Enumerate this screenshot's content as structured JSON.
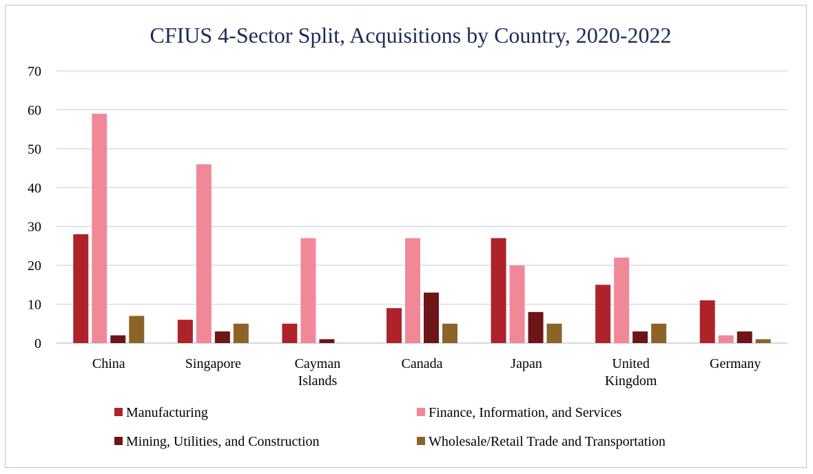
{
  "chart_data": {
    "type": "bar",
    "title": "CFIUS 4-Sector Split, Acquisitions by Country, 2020-2022",
    "xlabel": "",
    "ylabel": "",
    "ylim": [
      0,
      70
    ],
    "yticks": [
      0,
      10,
      20,
      30,
      40,
      50,
      60,
      70
    ],
    "grid": true,
    "legend_position": "bottom",
    "categories": [
      [
        "China"
      ],
      [
        "Singapore"
      ],
      [
        "Cayman",
        "Islands"
      ],
      [
        "Canada"
      ],
      [
        "Japan"
      ],
      [
        "United",
        "Kingdom"
      ],
      [
        "Germany"
      ]
    ],
    "series": [
      {
        "name": "Manufacturing",
        "color": "#ae2229",
        "values": [
          28,
          6,
          5,
          9,
          27,
          15,
          11
        ]
      },
      {
        "name": "Finance, Information, and Services",
        "color": "#f08898",
        "values": [
          59,
          46,
          27,
          27,
          20,
          22,
          2
        ]
      },
      {
        "name": "Mining, Utilities, and Construction",
        "color": "#6e1519",
        "values": [
          2,
          3,
          1,
          13,
          8,
          3,
          3
        ]
      },
      {
        "name": "Wholesale/Retail Trade and Transportation",
        "color": "#8d6428",
        "values": [
          7,
          5,
          0,
          5,
          5,
          5,
          1
        ]
      }
    ]
  }
}
